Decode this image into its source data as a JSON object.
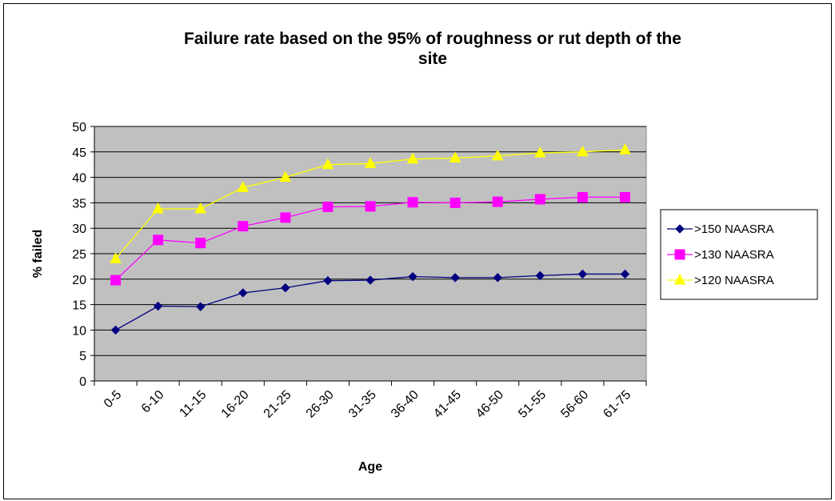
{
  "chart_data": {
    "type": "line",
    "title_lines": [
      "Failure rate based on the 95% of roughness or rut depth of the",
      "site"
    ],
    "xlabel": "Age",
    "ylabel": "% failed",
    "categories": [
      "0-5",
      "6-10",
      "11-15",
      "16-20",
      "21-25",
      "26-30",
      "31-35",
      "36-40",
      "41-45",
      "46-50",
      "51-55",
      "56-60",
      "61-75"
    ],
    "ylim": [
      0,
      50
    ],
    "ytick_step": 5,
    "grid": true,
    "legend_position": "right",
    "plot_background": "#c0c0c0",
    "series": [
      {
        "name": ">150 NAASRA",
        "color": "#000080",
        "marker": "diamond",
        "values": [
          10.0,
          14.7,
          14.6,
          17.3,
          18.3,
          19.7,
          19.8,
          20.5,
          20.3,
          20.3,
          20.7,
          21.0,
          21.0
        ]
      },
      {
        "name": ">130 NAASRA",
        "color": "#ff00ff",
        "marker": "square",
        "values": [
          19.8,
          27.7,
          27.1,
          30.4,
          32.1,
          34.2,
          34.3,
          35.1,
          35.0,
          35.2,
          35.7,
          36.1,
          36.1
        ]
      },
      {
        "name": ">120 NAASRA",
        "color": "#ffff00",
        "marker": "triangle",
        "values": [
          24.0,
          33.8,
          33.8,
          38.0,
          40.0,
          42.5,
          42.7,
          43.6,
          43.8,
          44.2,
          44.8,
          45.0,
          45.4
        ]
      }
    ]
  }
}
